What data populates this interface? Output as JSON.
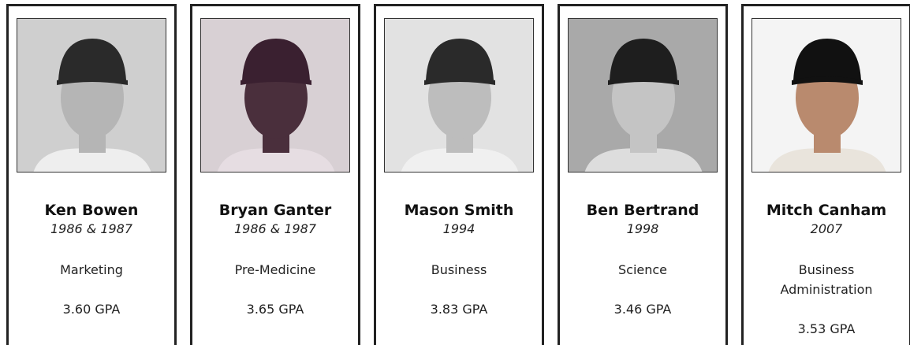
{
  "cards": [
    {
      "name": "Ken Bowen",
      "years": "1986 & 1987",
      "major": "Marketing",
      "gpa": "3.60 GPA"
    },
    {
      "name": "Bryan Ganter",
      "years": "1986 & 1987",
      "major": "Pre-Medicine",
      "gpa": "3.65 GPA"
    },
    {
      "name": "Mason Smith",
      "years": "1994",
      "major": "Business",
      "gpa": "3.83 GPA"
    },
    {
      "name": "Ben Bertrand",
      "years": "1998",
      "major": "Science",
      "gpa": "3.46 GPA"
    },
    {
      "name": "Mitch Canham",
      "years": "2007",
      "major": "Business Administration",
      "gpa": "3.53 GPA"
    }
  ]
}
